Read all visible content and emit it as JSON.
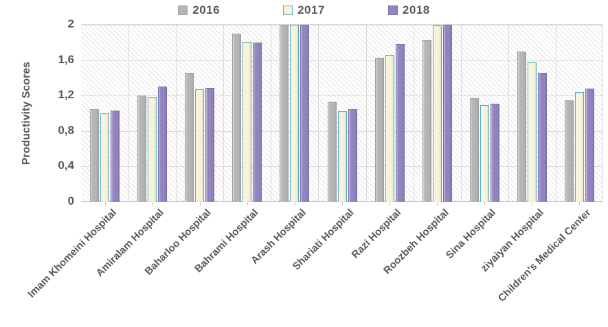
{
  "chart_data": {
    "type": "bar",
    "title": "",
    "ylabel": "Productivity Scores",
    "xlabel": "",
    "ylim": [
      0,
      2
    ],
    "yticks": [
      0,
      0.4,
      0.8,
      1.2,
      1.6,
      2
    ],
    "ytick_labels": [
      "0",
      "0,4",
      "0,8",
      "1,2",
      "1,6",
      "2"
    ],
    "grid": true,
    "legend_position": "top",
    "plot_background": "light-diagonal-hatch",
    "categories": [
      "Imam Khomeini Hospital",
      "Amiralam Hospital",
      "Baharloo Hospital",
      "Bahrami Hospital",
      "Arash Hospital",
      "Shariati Hospital",
      "Razi Hospital",
      "Roozbeh Hospital",
      "Sina Hospital",
      "ziyaiyan Hospital",
      "Children's Medical Center"
    ],
    "series": [
      {
        "name": "2016",
        "fill": "#b5b5b5",
        "border": "#9e9e9e",
        "values": [
          1.05,
          1.2,
          1.46,
          1.9,
          2.0,
          1.13,
          1.63,
          1.83,
          1.17,
          1.7,
          1.15
        ]
      },
      {
        "name": "2017",
        "fill": "#f8f2d8",
        "border": "#4bacc6",
        "values": [
          1.0,
          1.19,
          1.27,
          1.81,
          2.0,
          1.02,
          1.66,
          1.99,
          1.09,
          1.58,
          1.24
        ]
      },
      {
        "name": "2018",
        "fill": "#9384bf",
        "border": "#7c6baa",
        "values": [
          1.03,
          1.3,
          1.29,
          1.8,
          2.0,
          1.05,
          1.78,
          2.0,
          1.11,
          1.46,
          1.28
        ]
      }
    ],
    "colors": {
      "gridline": "#d9d9d9",
      "axis_line": "#bfbfbf",
      "text": "#595959"
    }
  }
}
